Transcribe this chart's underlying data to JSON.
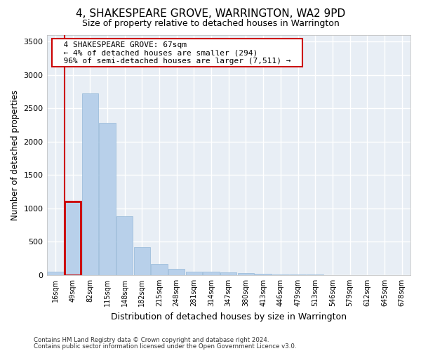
{
  "title": "4, SHAKESPEARE GROVE, WARRINGTON, WA2 9PD",
  "subtitle": "Size of property relative to detached houses in Warrington",
  "xlabel": "Distribution of detached houses by size in Warrington",
  "ylabel": "Number of detached properties",
  "bar_labels": [
    "16sqm",
    "49sqm",
    "82sqm",
    "115sqm",
    "148sqm",
    "182sqm",
    "215sqm",
    "248sqm",
    "281sqm",
    "314sqm",
    "347sqm",
    "380sqm",
    "413sqm",
    "446sqm",
    "479sqm",
    "513sqm",
    "546sqm",
    "579sqm",
    "612sqm",
    "645sqm",
    "678sqm"
  ],
  "bar_values": [
    50,
    1100,
    2730,
    2280,
    880,
    420,
    170,
    90,
    55,
    50,
    45,
    30,
    20,
    15,
    8,
    5,
    4,
    3,
    2,
    1,
    1
  ],
  "bar_color": "#b8d0ea",
  "bar_edge_color": "#95b8d8",
  "highlight_bar_index": 1,
  "highlight_color": "#cc0000",
  "ylim": [
    0,
    3600
  ],
  "yticks": [
    0,
    500,
    1000,
    1500,
    2000,
    2500,
    3000,
    3500
  ],
  "annotation_title": "4 SHAKESPEARE GROVE: 67sqm",
  "annotation_line1": "← 4% of detached houses are smaller (294)",
  "annotation_line2": "96% of semi-detached houses are larger (7,511) →",
  "annotation_box_color": "#ffffff",
  "annotation_border_color": "#cc0000",
  "footer1": "Contains HM Land Registry data © Crown copyright and database right 2024.",
  "footer2": "Contains public sector information licensed under the Open Government Licence v3.0.",
  "bg_color": "#e8eef5",
  "grid_color": "#ffffff",
  "fig_bg_color": "#ffffff"
}
